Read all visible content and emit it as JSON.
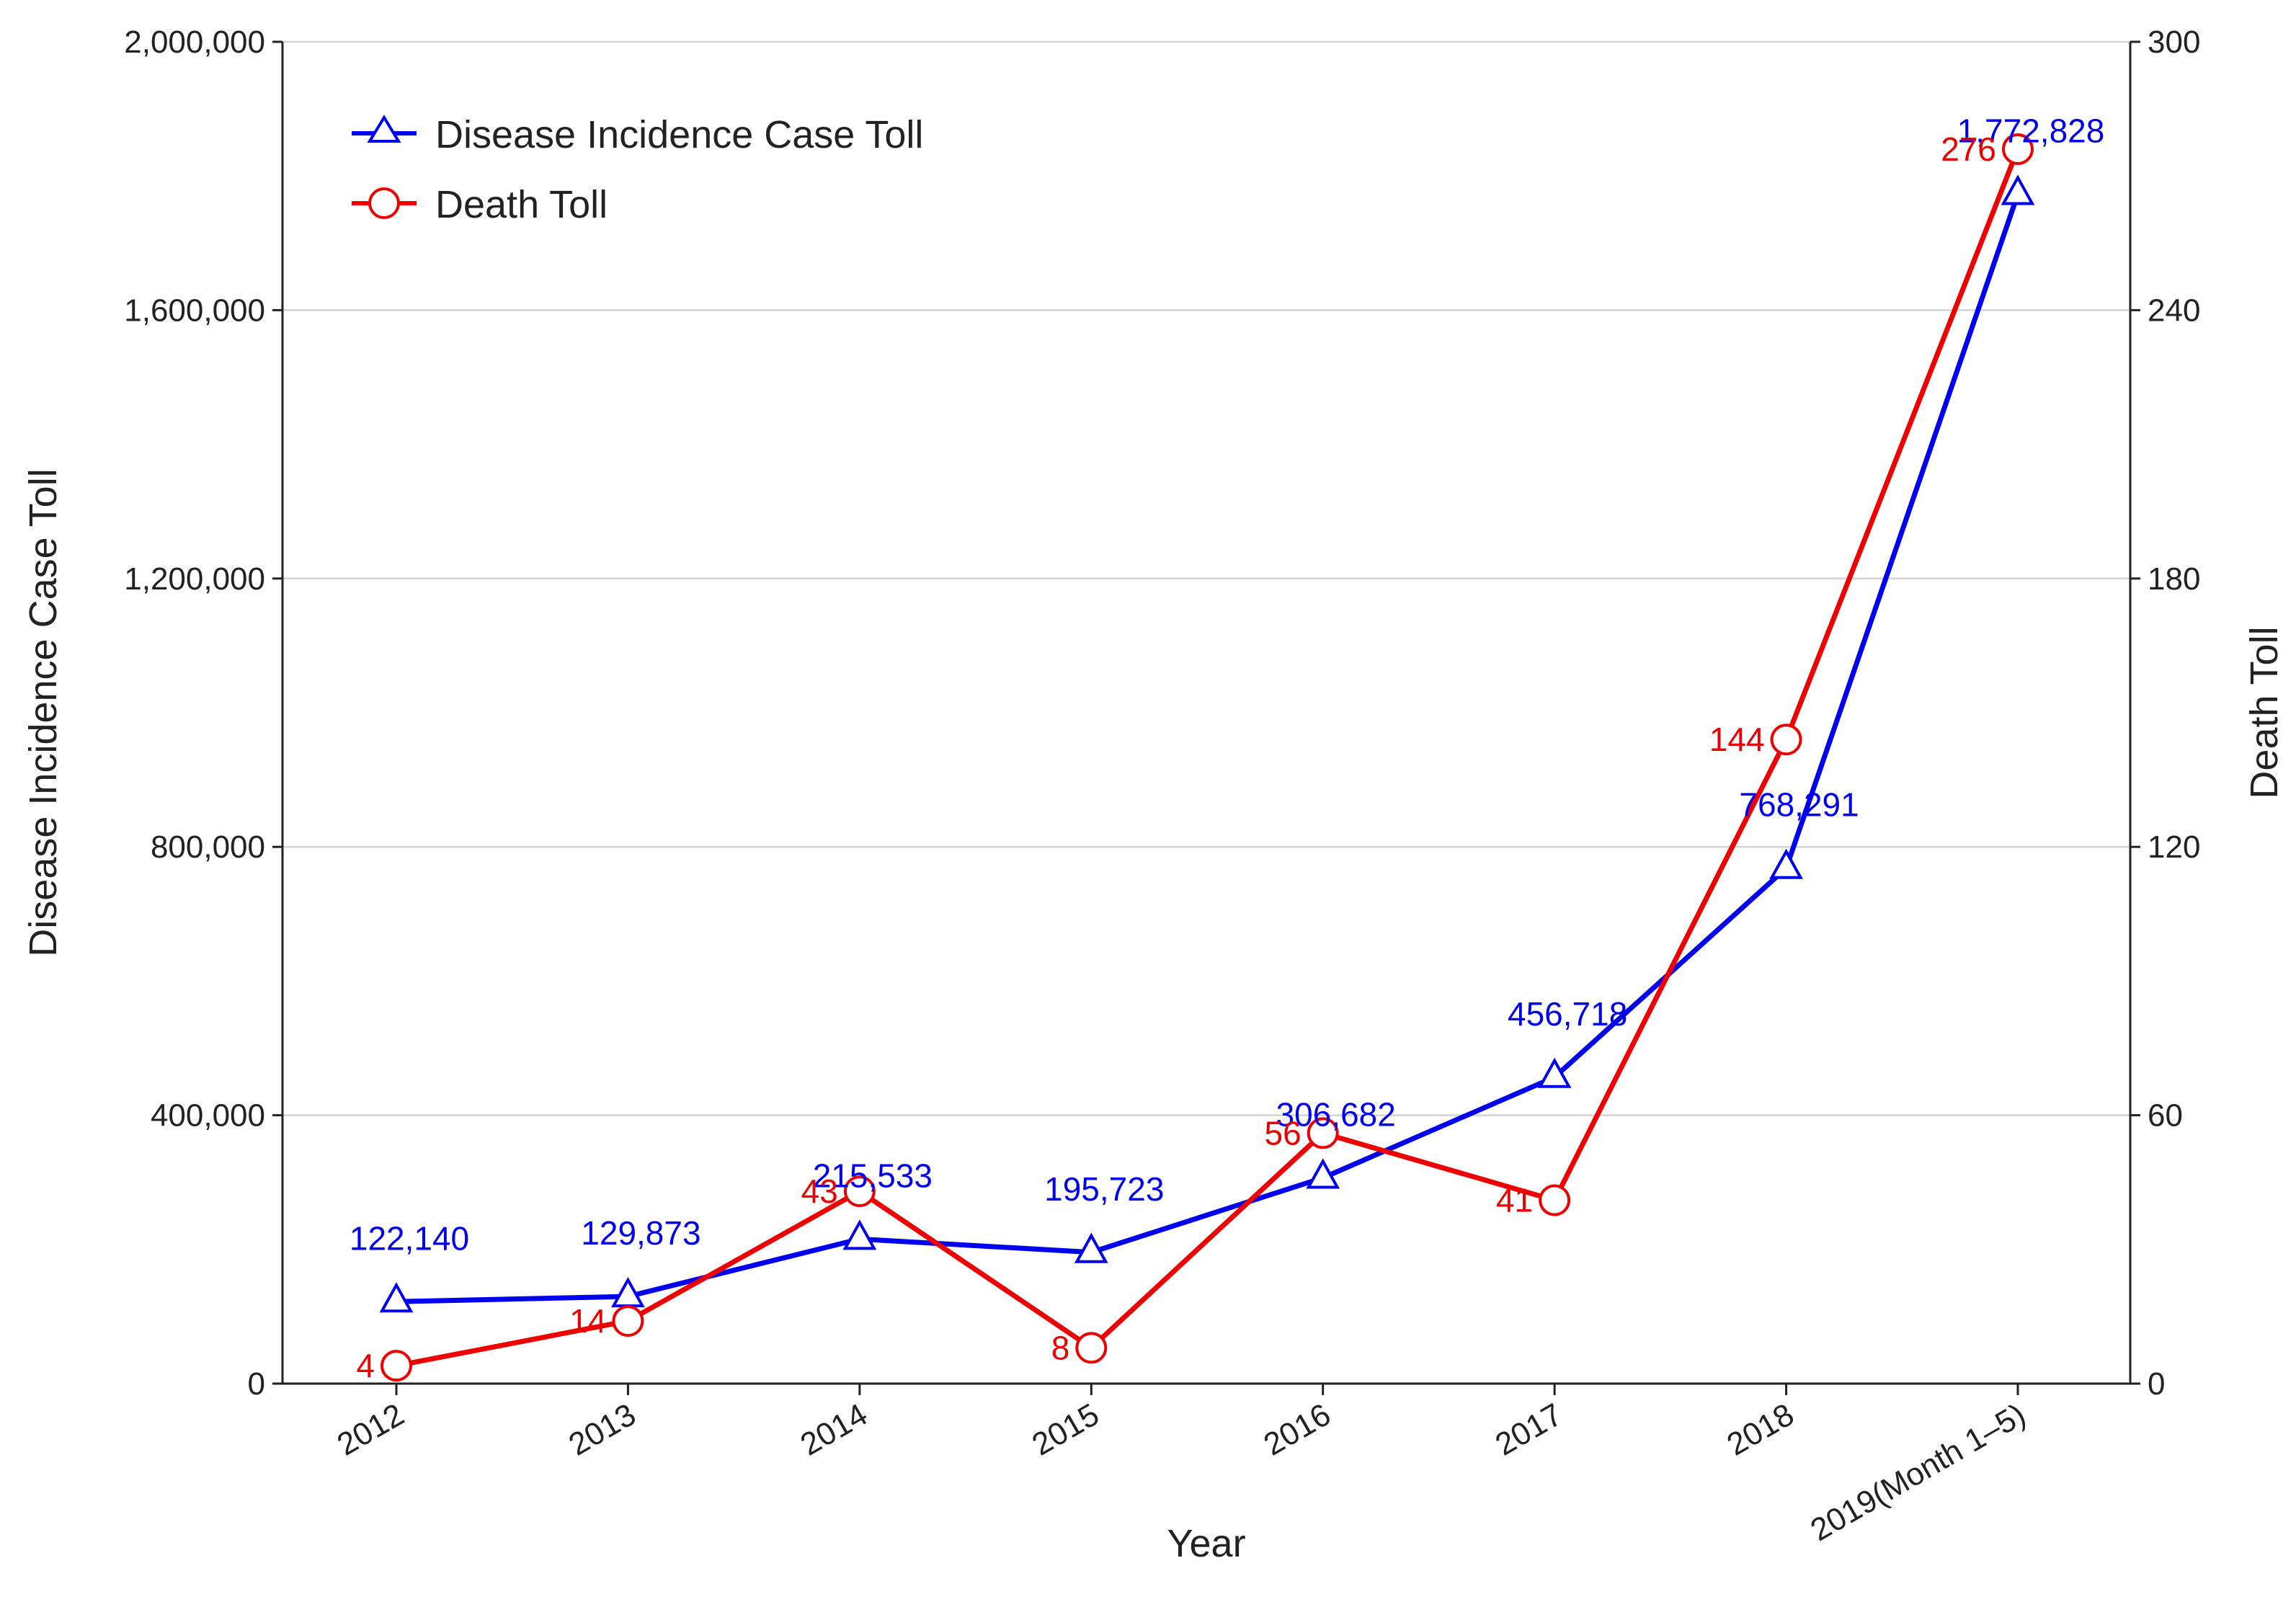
{
  "chart_data": {
    "type": "line",
    "xlabel": "Year",
    "ylabel_left": "Disease Incidence Case Toll",
    "ylabel_right": "Death Toll",
    "categories": [
      "2012",
      "2013",
      "2014",
      "2015",
      "2016",
      "2017",
      "2018",
      "2019(Month 1–5)"
    ],
    "y_left": {
      "range": [
        0,
        2000000
      ],
      "ticks": [
        0,
        400000,
        800000,
        1200000,
        1600000,
        2000000
      ],
      "tick_labels": [
        "0",
        "400,000",
        "800,000",
        "1,200,000",
        "1,600,000",
        "2,000,000"
      ]
    },
    "y_right": {
      "range": [
        0,
        300
      ],
      "ticks": [
        0,
        60,
        120,
        180,
        240,
        300
      ],
      "tick_labels": [
        "0",
        "60",
        "120",
        "180",
        "240",
        "300"
      ]
    },
    "grid": true,
    "legend_position": "top-left",
    "series": [
      {
        "name": "Disease Incidence Case Toll",
        "axis": "left",
        "color": "#0000ee",
        "marker": "triangle",
        "values": [
          122140,
          129873,
          215533,
          195723,
          306682,
          456718,
          768291,
          1772828
        ],
        "labels": [
          "122,140",
          "129,873",
          "215,533",
          "195,723",
          "306,682",
          "456,718",
          "768,291",
          "1,772,828"
        ]
      },
      {
        "name": "Death Toll",
        "axis": "right",
        "color": "#ee0000",
        "marker": "circle",
        "values": [
          4,
          14,
          43,
          8,
          56,
          41,
          144,
          276
        ],
        "labels": [
          "4",
          "14",
          "43",
          "8",
          "56",
          "41",
          "144",
          "276"
        ]
      }
    ]
  }
}
